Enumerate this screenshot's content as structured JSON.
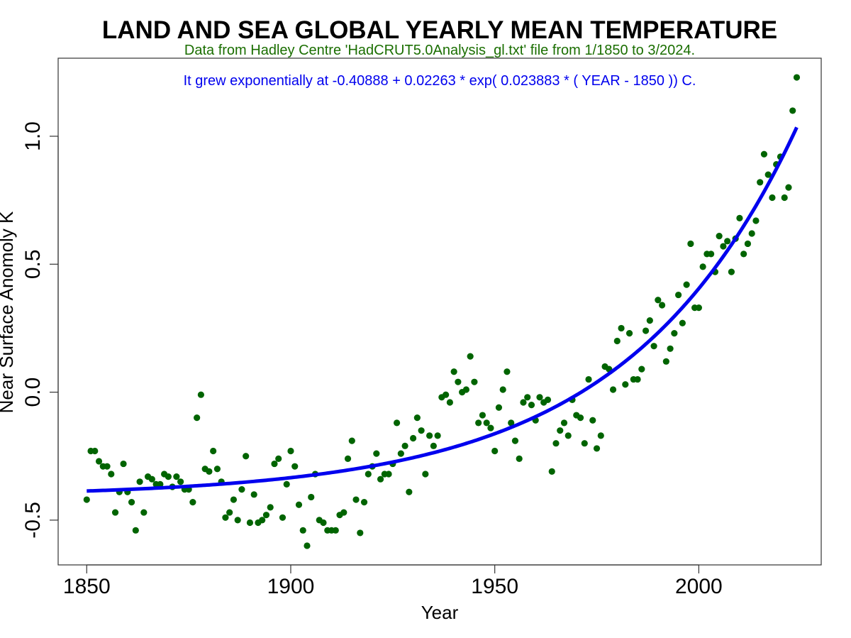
{
  "chart_data": {
    "type": "scatter",
    "title": "LAND AND SEA GLOBAL YEARLY MEAN TEMPERATURE",
    "subtitle": "Data from Hadley Centre 'HadCRUT5.0Analysis_gl.txt' file from 1/1850 to 3/2024.",
    "annotation": "It grew exponentially at -0.40888 + 0.02263 * exp( 0.023883 * ( YEAR - 1850 )) C.",
    "xlabel": "Year",
    "ylabel": "Near Surface Anomoly K",
    "xlim": [
      1843,
      2030
    ],
    "ylim": [
      -0.675,
      1.305
    ],
    "x_ticks": [
      1850,
      1900,
      1950,
      2000
    ],
    "y_ticks": [
      -0.5,
      0.0,
      0.5,
      1.0
    ],
    "x_tick_labels": [
      "1850",
      "1900",
      "1950",
      "2000"
    ],
    "y_tick_labels": [
      "-0.5",
      "0.0",
      "0.5",
      "1.0"
    ],
    "grid": false,
    "colors": {
      "points": "#006400",
      "fit": "#0000ee",
      "title": "#000000",
      "subtitle": "#1a6e00",
      "annotation": "#0000ee"
    },
    "fit": {
      "a": -0.40888,
      "b": 0.02263,
      "k": 0.023883,
      "x0": 1850,
      "x_start": 1850,
      "x_end": 2024
    },
    "series": [
      {
        "x": [
          1850,
          1851,
          1852,
          1853,
          1854,
          1855,
          1856,
          1857,
          1858,
          1859,
          1860,
          1861,
          1862,
          1863,
          1864,
          1865,
          1866,
          1867,
          1868,
          1869,
          1870,
          1871,
          1872,
          1873,
          1874,
          1875,
          1876,
          1877,
          1878,
          1879,
          1880,
          1881,
          1882,
          1883,
          1884,
          1885,
          1886,
          1887,
          1888,
          1889,
          1890,
          1891,
          1892,
          1893,
          1894,
          1895,
          1896,
          1897,
          1898,
          1899,
          1900,
          1901,
          1902,
          1903,
          1904,
          1905,
          1906,
          1907,
          1908,
          1909,
          1910,
          1911,
          1912,
          1913,
          1914,
          1915,
          1916,
          1917,
          1918,
          1919,
          1920,
          1921,
          1922,
          1923,
          1924,
          1925,
          1926,
          1927,
          1928,
          1929,
          1930,
          1931,
          1932,
          1933,
          1934,
          1935,
          1936,
          1937,
          1938,
          1939,
          1940,
          1941,
          1942,
          1943,
          1944,
          1945,
          1946,
          1947,
          1948,
          1949,
          1950,
          1951,
          1952,
          1953,
          1954,
          1955,
          1956,
          1957,
          1958,
          1959,
          1960,
          1961,
          1962,
          1963,
          1964,
          1965,
          1966,
          1967,
          1968,
          1969,
          1970,
          1971,
          1972,
          1973,
          1974,
          1975,
          1976,
          1977,
          1978,
          1979,
          1980,
          1981,
          1982,
          1983,
          1984,
          1985,
          1986,
          1987,
          1988,
          1989,
          1990,
          1991,
          1992,
          1993,
          1994,
          1995,
          1996,
          1997,
          1998,
          1999,
          2000,
          2001,
          2002,
          2003,
          2004,
          2005,
          2006,
          2007,
          2008,
          2009,
          2010,
          2011,
          2012,
          2013,
          2014,
          2015,
          2016,
          2017,
          2018,
          2019,
          2020,
          2021,
          2022,
          2023,
          2024
        ],
        "y": [
          -0.42,
          -0.23,
          -0.23,
          -0.27,
          -0.29,
          -0.29,
          -0.32,
          -0.47,
          -0.39,
          -0.28,
          -0.39,
          -0.43,
          -0.54,
          -0.35,
          -0.47,
          -0.33,
          -0.34,
          -0.36,
          -0.36,
          -0.32,
          -0.33,
          -0.37,
          -0.33,
          -0.35,
          -0.38,
          -0.38,
          -0.43,
          -0.1,
          -0.01,
          -0.3,
          -0.31,
          -0.23,
          -0.3,
          -0.35,
          -0.49,
          -0.47,
          -0.42,
          -0.5,
          -0.38,
          -0.25,
          -0.51,
          -0.4,
          -0.51,
          -0.5,
          -0.48,
          -0.45,
          -0.28,
          -0.26,
          -0.49,
          -0.36,
          -0.23,
          -0.29,
          -0.44,
          -0.54,
          -0.6,
          -0.41,
          -0.32,
          -0.5,
          -0.51,
          -0.54,
          -0.54,
          -0.54,
          -0.48,
          -0.47,
          -0.26,
          -0.19,
          -0.42,
          -0.55,
          -0.43,
          -0.32,
          -0.29,
          -0.24,
          -0.34,
          -0.32,
          -0.32,
          -0.28,
          -0.12,
          -0.24,
          -0.21,
          -0.39,
          -0.18,
          -0.1,
          -0.15,
          -0.32,
          -0.17,
          -0.21,
          -0.17,
          -0.02,
          -0.01,
          -0.04,
          0.08,
          0.04,
          0.0,
          0.01,
          0.14,
          0.04,
          -0.12,
          -0.09,
          -0.12,
          -0.14,
          -0.23,
          -0.06,
          0.01,
          0.08,
          -0.12,
          -0.19,
          -0.26,
          -0.04,
          -0.02,
          -0.05,
          -0.11,
          -0.02,
          -0.04,
          -0.03,
          -0.31,
          -0.2,
          -0.15,
          -0.12,
          -0.17,
          -0.03,
          -0.09,
          -0.1,
          -0.2,
          0.05,
          -0.11,
          -0.22,
          -0.17,
          0.1,
          0.09,
          0.01,
          0.2,
          0.25,
          0.03,
          0.23,
          0.05,
          0.05,
          0.09,
          0.24,
          0.28,
          0.18,
          0.36,
          0.34,
          0.12,
          0.17,
          0.23,
          0.38,
          0.27,
          0.42,
          0.58,
          0.33,
          0.33,
          0.49,
          0.54,
          0.54,
          0.47,
          0.61,
          0.57,
          0.59,
          0.47,
          0.6,
          0.68,
          0.54,
          0.58,
          0.62,
          0.67,
          0.82,
          0.93,
          0.85,
          0.76,
          0.89,
          0.92,
          0.76,
          0.8,
          1.1,
          1.23
        ]
      }
    ]
  }
}
